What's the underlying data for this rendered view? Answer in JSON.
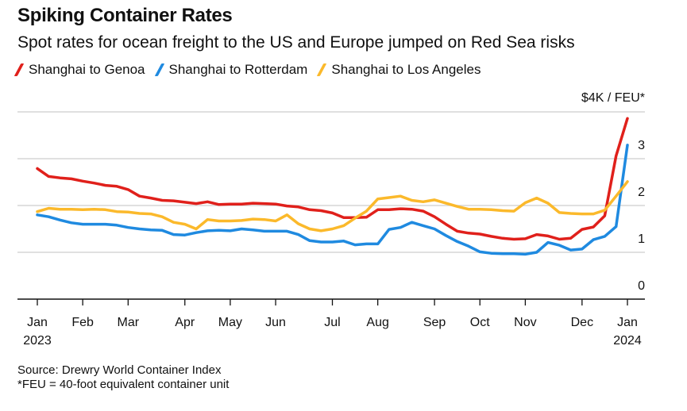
{
  "chart_data": {
    "type": "line",
    "title": "Spiking Container Rates",
    "subtitle": "Spot rates for ocean freight to the US and Europe jumped on Red Sea risks",
    "ylabel": "$4K / FEU*",
    "ylim": [
      0,
      4
    ],
    "yticks": [
      0,
      1,
      2,
      3
    ],
    "grid": true,
    "legend_position": "top-left",
    "xlim_weeks": [
      0,
      52
    ],
    "x_ticks": [
      {
        "label": "Jan",
        "sub": "2023",
        "week": 0
      },
      {
        "label": "Feb",
        "sub": "",
        "week": 4
      },
      {
        "label": "Mar",
        "sub": "",
        "week": 8
      },
      {
        "label": "Apr",
        "sub": "",
        "week": 13
      },
      {
        "label": "May",
        "sub": "",
        "week": 17
      },
      {
        "label": "Jun",
        "sub": "",
        "week": 21
      },
      {
        "label": "Jul",
        "sub": "",
        "week": 26
      },
      {
        "label": "Aug",
        "sub": "",
        "week": 30
      },
      {
        "label": "Sep",
        "sub": "",
        "week": 35
      },
      {
        "label": "Oct",
        "sub": "",
        "week": 39
      },
      {
        "label": "Nov",
        "sub": "",
        "week": 43
      },
      {
        "label": "Dec",
        "sub": "",
        "week": 48
      },
      {
        "label": "Jan",
        "sub": "2024",
        "week": 52
      }
    ],
    "series": [
      {
        "name": "Shanghai to Genoa",
        "color": "#e0201b",
        "values": [
          2.79,
          2.62,
          2.59,
          2.57,
          2.52,
          2.48,
          2.43,
          2.41,
          2.34,
          2.2,
          2.16,
          2.11,
          2.1,
          2.07,
          2.04,
          2.08,
          2.02,
          2.03,
          2.03,
          2.05,
          2.04,
          2.03,
          1.99,
          1.97,
          1.91,
          1.89,
          1.84,
          1.74,
          1.74,
          1.75,
          1.91,
          1.91,
          1.93,
          1.92,
          1.88,
          1.76,
          1.6,
          1.45,
          1.41,
          1.39,
          1.34,
          1.3,
          1.28,
          1.29,
          1.38,
          1.35,
          1.28,
          1.3,
          1.49,
          1.54,
          1.78,
          3.06,
          3.86
        ]
      },
      {
        "name": "Shanghai to Rotterdam",
        "color": "#1f8ae0",
        "values": [
          1.8,
          1.76,
          1.69,
          1.63,
          1.6,
          1.6,
          1.6,
          1.58,
          1.53,
          1.5,
          1.48,
          1.47,
          1.38,
          1.37,
          1.42,
          1.46,
          1.47,
          1.46,
          1.5,
          1.48,
          1.45,
          1.45,
          1.45,
          1.38,
          1.25,
          1.22,
          1.22,
          1.24,
          1.16,
          1.18,
          1.18,
          1.49,
          1.53,
          1.64,
          1.57,
          1.5,
          1.36,
          1.23,
          1.13,
          1.01,
          0.98,
          0.97,
          0.97,
          0.96,
          1.0,
          1.21,
          1.15,
          1.05,
          1.07,
          1.27,
          1.34,
          1.55,
          3.29
        ]
      },
      {
        "name": "Shanghai to Los Angeles",
        "color": "#fbb92b",
        "values": [
          1.87,
          1.94,
          1.92,
          1.92,
          1.91,
          1.92,
          1.91,
          1.87,
          1.86,
          1.83,
          1.82,
          1.76,
          1.64,
          1.6,
          1.5,
          1.7,
          1.67,
          1.67,
          1.68,
          1.71,
          1.7,
          1.67,
          1.8,
          1.61,
          1.5,
          1.46,
          1.5,
          1.57,
          1.73,
          1.88,
          2.14,
          2.17,
          2.2,
          2.11,
          2.08,
          2.12,
          2.05,
          1.98,
          1.92,
          1.92,
          1.91,
          1.89,
          1.88,
          2.06,
          2.16,
          2.05,
          1.85,
          1.83,
          1.82,
          1.82,
          1.9,
          2.2,
          2.51
        ]
      }
    ]
  },
  "footer": {
    "source": "Source: Drewry World Container Index",
    "note": "*FEU = 40-foot equivalent container unit"
  }
}
